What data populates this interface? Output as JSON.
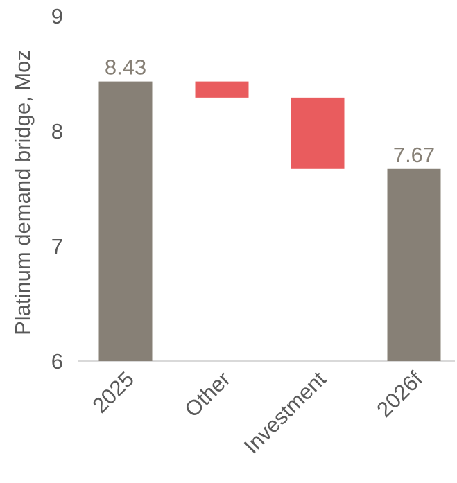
{
  "chart_data": {
    "type": "waterfall",
    "ylabel": "Platinum demand bridge, Moz",
    "ylim": [
      6,
      9
    ],
    "yticks": [
      "6",
      "7",
      "8",
      "9"
    ],
    "categories": [
      "2025",
      "Other",
      "Investment",
      "2026f"
    ],
    "bars": [
      {
        "category": "2025",
        "kind": "total",
        "start": 6,
        "end": 8.43,
        "label": "8.43"
      },
      {
        "category": "Other",
        "kind": "decrease",
        "start": 8.43,
        "end": 8.29,
        "label": ""
      },
      {
        "category": "Investment",
        "kind": "decrease",
        "start": 8.29,
        "end": 7.67,
        "label": ""
      },
      {
        "category": "2026f",
        "kind": "total",
        "start": 6,
        "end": 7.67,
        "label": "7.67"
      }
    ],
    "colors": {
      "total": "#878076",
      "decrease": "#e95c5e",
      "data_label": "#878076",
      "axis": "#d9d9d9",
      "text": "#595959"
    },
    "grid": false,
    "legend": "none"
  }
}
